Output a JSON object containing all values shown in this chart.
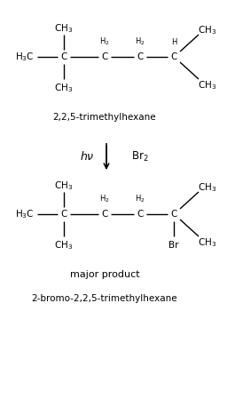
{
  "bg_color": "#ffffff",
  "text_color": "#000000",
  "title1": "2,2,5-trimethylhexane",
  "title2": "major product",
  "title3": "2-bromo-2,2,5-trimethylhexane",
  "figsize": [
    2.65,
    4.49
  ],
  "dpi": 100,
  "xlim": [
    0,
    265
  ],
  "ylim": [
    0,
    449
  ]
}
